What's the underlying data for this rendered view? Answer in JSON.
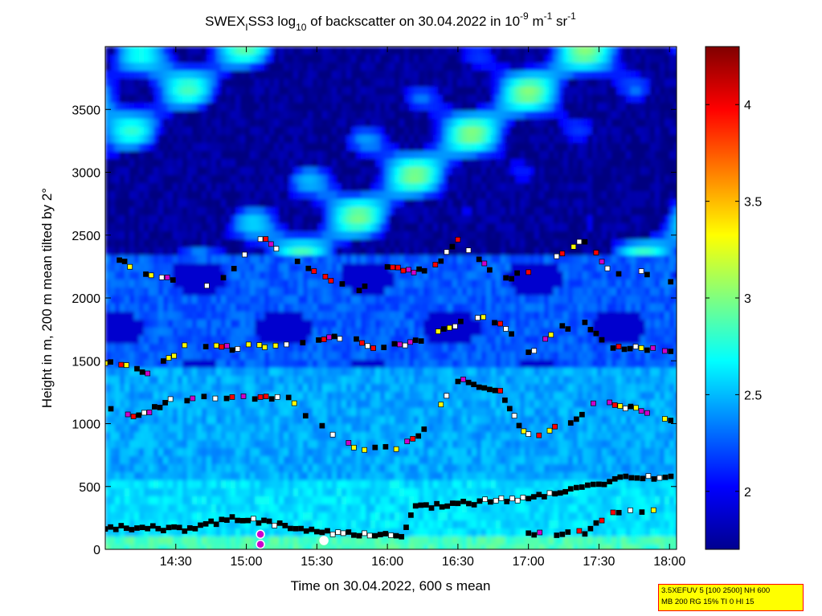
{
  "chart_data": {
    "type": "heatmap",
    "title": {
      "prefix": "SWEX",
      "sub1": "I",
      "mid1": "SS3 log",
      "sub2": "10",
      "mid2": " of backscatter on 30.04.2022 in 10",
      "sup1": "-9",
      "mid3": " m",
      "sup2": "-1",
      "mid4": " sr",
      "sup3": "-1"
    },
    "xlabel": "Time on 30.04.2022, 600 s mean",
    "ylabel": "Height in m, 200 m mean tilted by 2°",
    "x_tick_labels": [
      "14:30",
      "15:00",
      "15:30",
      "16:00",
      "16:30",
      "17:00",
      "17:30",
      "18:00"
    ],
    "x_tick_values_h": [
      14.5,
      15.0,
      15.5,
      16.0,
      16.5,
      17.0,
      17.5,
      18.0
    ],
    "xlim_h": [
      14.0,
      18.05
    ],
    "y_ticks": [
      0,
      500,
      1000,
      1500,
      2000,
      2500,
      3000,
      3500
    ],
    "ylim": [
      0,
      4000
    ],
    "colorbar": {
      "range": [
        1.7,
        4.3
      ],
      "ticks": [
        2,
        2.5,
        3,
        3.5,
        4
      ],
      "tick_labels": [
        "2",
        "2.5",
        "3",
        "3.5",
        "4"
      ],
      "colormap": "jet"
    },
    "layers": [
      {
        "name": "ground",
        "points": [
          [
            14.0,
            180
          ],
          [
            14.3,
            170
          ],
          [
            14.6,
            160
          ],
          [
            14.9,
            250
          ],
          [
            15.2,
            200
          ],
          [
            15.5,
            140
          ],
          [
            15.8,
            120
          ],
          [
            16.1,
            110
          ],
          [
            16.2,
            340
          ],
          [
            16.5,
            360
          ],
          [
            17.0,
            410
          ],
          [
            17.3,
            470
          ],
          [
            17.5,
            520
          ],
          [
            17.65,
            580
          ],
          [
            18.05,
            570
          ]
        ]
      },
      {
        "name": "low",
        "points": [
          [
            17.0,
            130
          ],
          [
            17.4,
            130
          ],
          [
            17.6,
            300
          ],
          [
            18.05,
            300
          ]
        ]
      },
      {
        "name": "mid",
        "points": [
          [
            14.0,
            1150
          ],
          [
            14.2,
            1050
          ],
          [
            14.5,
            1200
          ],
          [
            15.3,
            1200
          ],
          [
            15.5,
            1000
          ],
          [
            15.8,
            800
          ],
          [
            16.1,
            800
          ],
          [
            16.3,
            1000
          ],
          [
            16.5,
            1350
          ],
          [
            16.8,
            1250
          ],
          [
            16.9,
            1050
          ],
          [
            17.0,
            900
          ],
          [
            17.3,
            1000
          ],
          [
            17.5,
            1200
          ],
          [
            17.8,
            1100
          ],
          [
            18.05,
            1000
          ]
        ]
      },
      {
        "name": "upper",
        "points": [
          [
            14.0,
            1500
          ],
          [
            14.3,
            1400
          ],
          [
            14.6,
            1650
          ],
          [
            14.9,
            1600
          ],
          [
            15.4,
            1650
          ],
          [
            15.7,
            1700
          ],
          [
            15.9,
            1600
          ],
          [
            16.2,
            1650
          ],
          [
            16.4,
            1750
          ],
          [
            16.6,
            1850
          ],
          [
            16.8,
            1800
          ],
          [
            17.0,
            1550
          ],
          [
            17.2,
            1750
          ],
          [
            17.4,
            1800
          ],
          [
            17.6,
            1600
          ],
          [
            17.8,
            1600
          ],
          [
            18.05,
            1550
          ]
        ]
      },
      {
        "name": "top",
        "points": [
          [
            14.1,
            2300
          ],
          [
            14.4,
            2150
          ],
          [
            14.8,
            2100
          ],
          [
            15.1,
            2480
          ],
          [
            15.4,
            2250
          ],
          [
            15.8,
            2050
          ],
          [
            16.0,
            2250
          ],
          [
            16.3,
            2200
          ],
          [
            16.5,
            2450
          ],
          [
            16.8,
            2150
          ],
          [
            17.0,
            2200
          ],
          [
            17.2,
            2350
          ],
          [
            17.4,
            2450
          ],
          [
            17.6,
            2200
          ],
          [
            17.8,
            2200
          ],
          [
            18.05,
            2100
          ]
        ]
      }
    ],
    "markers": [
      {
        "x": 15.1,
        "y": 120,
        "color": "#cc00cc"
      },
      {
        "x": 15.1,
        "y": 40,
        "color": "#cc00cc"
      },
      {
        "x": 15.55,
        "y": 70,
        "color": "#ffffff"
      }
    ]
  },
  "info_box": {
    "line1": "3.5XEFUV 5 [100 2500] NH 600",
    "line2": "MB 200 RG 15% TI 0 HI 15"
  }
}
